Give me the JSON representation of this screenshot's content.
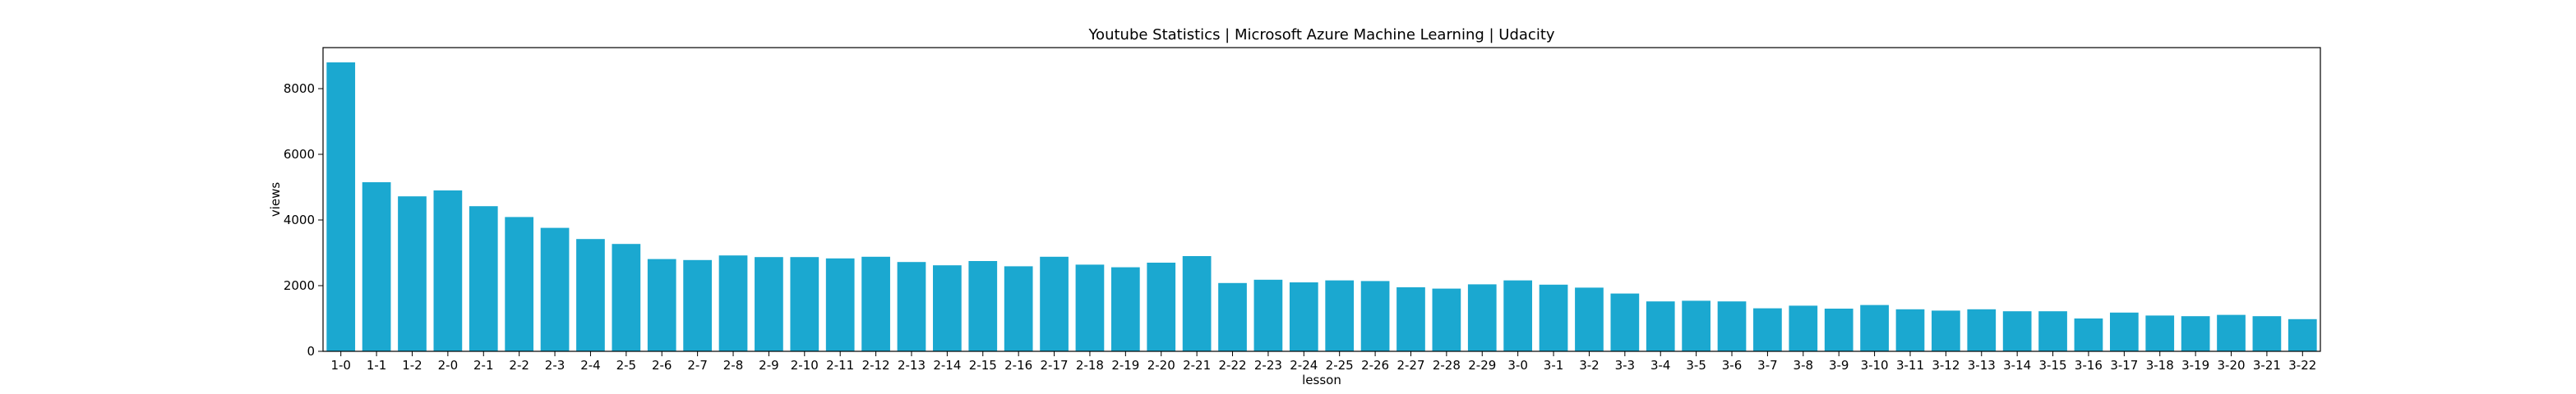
{
  "chart_data": {
    "type": "bar",
    "title": "Youtube Statistics | Microsoft Azure Machine Learning | Udacity",
    "xlabel": "lesson",
    "ylabel": "views",
    "ylim": [
      0,
      9250
    ],
    "yticks": [
      0,
      2000,
      4000,
      6000,
      8000
    ],
    "grid": false,
    "bar_color": "#1ba8d0",
    "categories": [
      "1-0",
      "1-1",
      "1-2",
      "2-0",
      "2-1",
      "2-2",
      "2-3",
      "2-4",
      "2-5",
      "2-6",
      "2-7",
      "2-8",
      "2-9",
      "2-10",
      "2-11",
      "2-12",
      "2-13",
      "2-14",
      "2-15",
      "2-16",
      "2-17",
      "2-18",
      "2-19",
      "2-20",
      "2-21",
      "2-22",
      "2-23",
      "2-24",
      "2-25",
      "2-26",
      "2-27",
      "2-28",
      "2-29",
      "3-0",
      "3-1",
      "3-2",
      "3-3",
      "3-4",
      "3-5",
      "3-6",
      "3-7",
      "3-8",
      "3-9",
      "3-10",
      "3-11",
      "3-12",
      "3-13",
      "3-14",
      "3-15",
      "3-16",
      "3-17",
      "3-18",
      "3-19",
      "3-20",
      "3-21",
      "3-22"
    ],
    "values": [
      8800,
      5150,
      4720,
      4900,
      4420,
      4090,
      3760,
      3420,
      3270,
      2810,
      2780,
      2920,
      2870,
      2870,
      2830,
      2880,
      2720,
      2620,
      2750,
      2590,
      2880,
      2640,
      2560,
      2700,
      2900,
      2080,
      2180,
      2100,
      2160,
      2140,
      1950,
      1910,
      2040,
      2160,
      2030,
      1940,
      1760,
      1520,
      1540,
      1520,
      1310,
      1390,
      1300,
      1410,
      1280,
      1240,
      1280,
      1220,
      1220,
      1000,
      1180,
      1090,
      1070,
      1110,
      1070,
      980
    ]
  }
}
